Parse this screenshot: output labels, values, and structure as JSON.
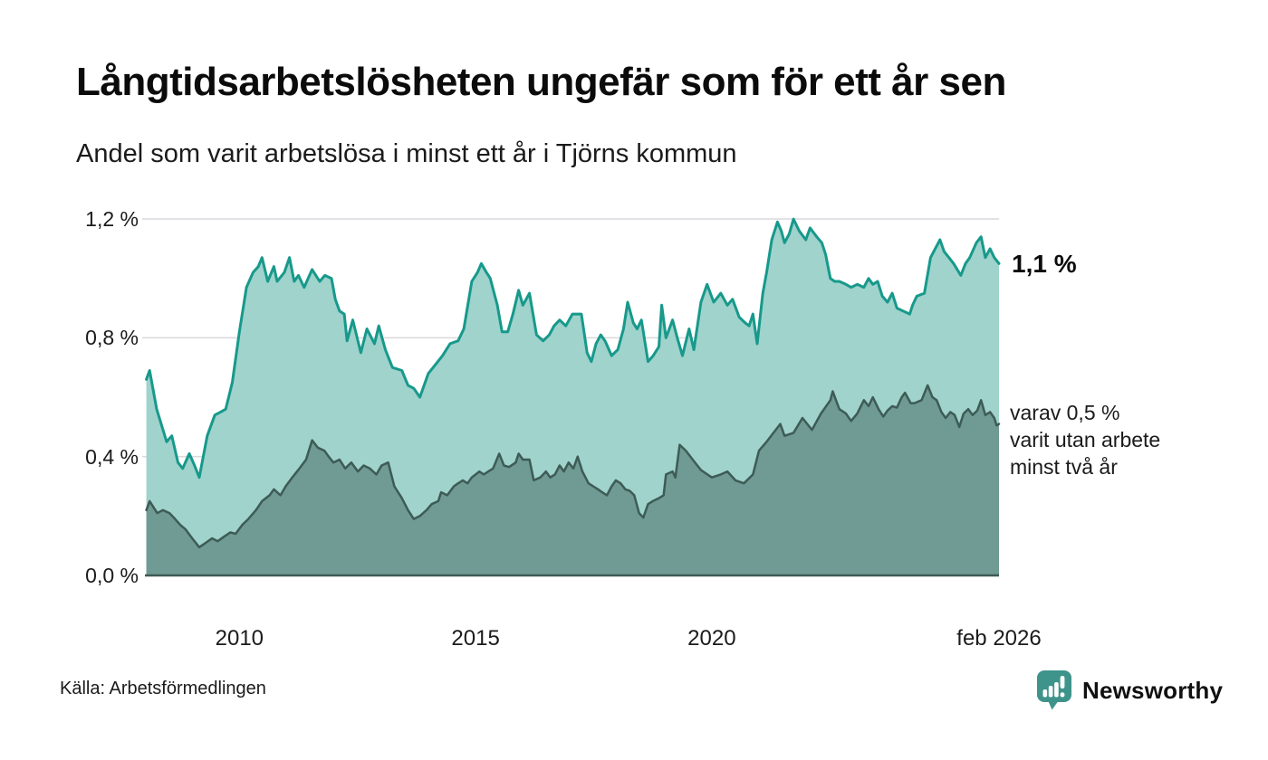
{
  "footer": {
    "source": "Källa: Arbetsförmedlingen",
    "brand": "Newsworthy"
  },
  "annotations": {
    "latest_value": "1,1 %",
    "secondary_label": "varav 0,5 %\nvarit utan arbete\nminst två år"
  },
  "colors": {
    "grid": "#d9d9dd",
    "baseline": "#3e5b55",
    "brand_teal": "#3e948b",
    "text_dark": "#0b0b0b"
  },
  "chart_data": {
    "type": "area",
    "title": "Långtidsarbetslösheten ungefär som för ett år sen",
    "subtitle": "Andel som varit arbetslösa i minst ett år i Tjörns kommun",
    "grid": true,
    "legend_position": "right-annotations",
    "x_axis": {
      "range": [
        2008.0,
        2026.08
      ],
      "ticks": [
        {
          "value": 2010,
          "label": "2010"
        },
        {
          "value": 2015,
          "label": "2015"
        },
        {
          "value": 2020,
          "label": "2020"
        },
        {
          "value": 2026.08,
          "label": "feb 2026"
        }
      ]
    },
    "y_axis": {
      "unit": "%",
      "range": [
        0,
        1.2428
      ],
      "ticks": [
        {
          "value": 0.0,
          "label": "0,0 %"
        },
        {
          "value": 0.4,
          "label": "0,4 %"
        },
        {
          "value": 0.8,
          "label": "0,8 %"
        },
        {
          "value": 1.2,
          "label": "1,2 %"
        }
      ]
    },
    "series": [
      {
        "name": "Andel som varit arbetslösa i minst ett år",
        "latest_label": "1,1 %",
        "color": "#17998b",
        "fill": "#9fd3cc",
        "width": 3,
        "x": [
          2008.03,
          2008.1,
          2008.25,
          2008.46,
          2008.57,
          2008.7,
          2008.8,
          2008.94,
          2009.05,
          2009.15,
          2009.32,
          2009.48,
          2009.6,
          2009.71,
          2009.85,
          2010.0,
          2010.15,
          2010.29,
          2010.4,
          2010.48,
          2010.6,
          2010.73,
          2010.8,
          2010.95,
          2011.06,
          2011.16,
          2011.25,
          2011.37,
          2011.54,
          2011.7,
          2011.81,
          2011.95,
          2012.03,
          2012.12,
          2012.22,
          2012.28,
          2012.4,
          2012.57,
          2012.7,
          2012.86,
          2012.95,
          2013.09,
          2013.24,
          2013.44,
          2013.57,
          2013.69,
          2013.82,
          2014.0,
          2014.15,
          2014.3,
          2014.46,
          2014.63,
          2014.75,
          2014.92,
          2015.04,
          2015.12,
          2015.23,
          2015.31,
          2015.46,
          2015.56,
          2015.68,
          2015.79,
          2015.91,
          2016.0,
          2016.14,
          2016.29,
          2016.43,
          2016.56,
          2016.66,
          2016.78,
          2016.91,
          2017.05,
          2017.24,
          2017.36,
          2017.45,
          2017.55,
          2017.65,
          2017.74,
          2017.88,
          2018.01,
          2018.13,
          2018.22,
          2018.34,
          2018.42,
          2018.51,
          2018.65,
          2018.76,
          2018.88,
          2018.94,
          2019.03,
          2019.17,
          2019.27,
          2019.38,
          2019.52,
          2019.62,
          2019.77,
          2019.9,
          2020.04,
          2020.19,
          2020.33,
          2020.44,
          2020.58,
          2020.71,
          2020.79,
          2020.87,
          2020.96,
          2021.08,
          2021.16,
          2021.27,
          2021.39,
          2021.47,
          2021.54,
          2021.64,
          2021.73,
          2021.85,
          2021.99,
          2022.08,
          2022.22,
          2022.33,
          2022.41,
          2022.51,
          2022.6,
          2022.7,
          2022.84,
          2022.95,
          2023.08,
          2023.22,
          2023.32,
          2023.41,
          2023.51,
          2023.61,
          2023.72,
          2023.82,
          2023.92,
          2024.05,
          2024.19,
          2024.25,
          2024.34,
          2024.5,
          2024.63,
          2024.83,
          2024.92,
          2025.02,
          2025.12,
          2025.27,
          2025.37,
          2025.46,
          2025.6,
          2025.7,
          2025.79,
          2025.89,
          2025.98,
          2026.08
        ],
        "y": [
          0.66,
          0.69,
          0.56,
          0.45,
          0.47,
          0.38,
          0.36,
          0.41,
          0.37,
          0.33,
          0.47,
          0.54,
          0.55,
          0.56,
          0.65,
          0.82,
          0.97,
          1.02,
          1.04,
          1.07,
          0.99,
          1.04,
          0.99,
          1.02,
          1.07,
          0.99,
          1.01,
          0.97,
          1.03,
          0.99,
          1.01,
          1.0,
          0.93,
          0.89,
          0.88,
          0.79,
          0.86,
          0.75,
          0.83,
          0.78,
          0.84,
          0.76,
          0.7,
          0.69,
          0.64,
          0.63,
          0.6,
          0.68,
          0.71,
          0.74,
          0.78,
          0.79,
          0.83,
          0.99,
          1.02,
          1.05,
          1.02,
          1.0,
          0.91,
          0.82,
          0.82,
          0.88,
          0.96,
          0.91,
          0.95,
          0.81,
          0.79,
          0.81,
          0.84,
          0.86,
          0.84,
          0.88,
          0.88,
          0.75,
          0.72,
          0.78,
          0.81,
          0.79,
          0.74,
          0.76,
          0.83,
          0.92,
          0.85,
          0.83,
          0.86,
          0.72,
          0.74,
          0.77,
          0.91,
          0.8,
          0.86,
          0.8,
          0.74,
          0.83,
          0.76,
          0.92,
          0.98,
          0.92,
          0.95,
          0.91,
          0.93,
          0.87,
          0.85,
          0.84,
          0.88,
          0.78,
          0.95,
          1.02,
          1.13,
          1.19,
          1.16,
          1.12,
          1.15,
          1.2,
          1.16,
          1.13,
          1.17,
          1.14,
          1.12,
          1.08,
          1.0,
          0.99,
          0.99,
          0.98,
          0.97,
          0.98,
          0.97,
          1.0,
          0.98,
          0.99,
          0.94,
          0.92,
          0.95,
          0.9,
          0.89,
          0.88,
          0.91,
          0.94,
          0.95,
          1.07,
          1.13,
          1.09,
          1.07,
          1.05,
          1.01,
          1.05,
          1.07,
          1.12,
          1.14,
          1.07,
          1.1,
          1.07,
          1.05
        ]
      },
      {
        "name": "varav utan arbete minst två år",
        "latest_label": "varav 0,5 % varit utan arbete minst två år",
        "color": "#3e5b55",
        "fill": "#6f9b94",
        "width": 2.5,
        "x": [
          2008.03,
          2008.1,
          2008.26,
          2008.38,
          2008.52,
          2008.61,
          2008.75,
          2008.86,
          2009.0,
          2009.15,
          2009.29,
          2009.42,
          2009.54,
          2009.67,
          2009.81,
          2009.92,
          2010.06,
          2010.19,
          2010.35,
          2010.48,
          2010.64,
          2010.73,
          2010.87,
          2010.98,
          2011.12,
          2011.27,
          2011.41,
          2011.54,
          2011.66,
          2011.8,
          2011.89,
          2011.99,
          2012.12,
          2012.24,
          2012.37,
          2012.51,
          2012.63,
          2012.76,
          2012.9,
          2013.01,
          2013.15,
          2013.28,
          2013.44,
          2013.57,
          2013.69,
          2013.82,
          2013.96,
          2014.07,
          2014.21,
          2014.27,
          2014.4,
          2014.54,
          2014.63,
          2014.73,
          2014.83,
          2014.92,
          2015.08,
          2015.17,
          2015.27,
          2015.37,
          2015.5,
          2015.6,
          2015.71,
          2015.85,
          2015.91,
          2016.0,
          2016.14,
          2016.23,
          2016.37,
          2016.49,
          2016.58,
          2016.68,
          2016.78,
          2016.87,
          2016.97,
          2017.07,
          2017.16,
          2017.26,
          2017.39,
          2017.49,
          2017.59,
          2017.68,
          2017.78,
          2017.88,
          2017.97,
          2018.07,
          2018.17,
          2018.26,
          2018.36,
          2018.46,
          2018.55,
          2018.65,
          2018.75,
          2018.88,
          2018.98,
          2019.03,
          2019.17,
          2019.23,
          2019.32,
          2019.45,
          2019.62,
          2019.77,
          2020.0,
          2020.19,
          2020.33,
          2020.5,
          2020.68,
          2020.87,
          2021.0,
          2021.16,
          2021.45,
          2021.54,
          2021.73,
          2021.92,
          2022.12,
          2022.31,
          2022.51,
          2022.56,
          2022.7,
          2022.84,
          2022.95,
          2023.08,
          2023.22,
          2023.32,
          2023.41,
          2023.53,
          2023.63,
          2023.72,
          2023.82,
          2023.92,
          2024.02,
          2024.09,
          2024.21,
          2024.29,
          2024.44,
          2024.57,
          2024.67,
          2024.76,
          2024.86,
          2024.95,
          2025.05,
          2025.14,
          2025.24,
          2025.33,
          2025.43,
          2025.52,
          2025.62,
          2025.7,
          2025.79,
          2025.89,
          2025.98,
          2026.03,
          2026.08
        ],
        "y": [
          0.22,
          0.25,
          0.21,
          0.22,
          0.21,
          0.195,
          0.17,
          0.155,
          0.125,
          0.095,
          0.11,
          0.125,
          0.115,
          0.13,
          0.145,
          0.14,
          0.17,
          0.19,
          0.22,
          0.25,
          0.27,
          0.29,
          0.27,
          0.3,
          0.33,
          0.36,
          0.39,
          0.455,
          0.43,
          0.42,
          0.4,
          0.38,
          0.39,
          0.36,
          0.38,
          0.35,
          0.37,
          0.36,
          0.34,
          0.37,
          0.38,
          0.3,
          0.26,
          0.22,
          0.19,
          0.2,
          0.22,
          0.24,
          0.25,
          0.28,
          0.27,
          0.3,
          0.31,
          0.32,
          0.31,
          0.33,
          0.35,
          0.34,
          0.35,
          0.36,
          0.41,
          0.37,
          0.365,
          0.38,
          0.41,
          0.39,
          0.39,
          0.32,
          0.33,
          0.35,
          0.33,
          0.34,
          0.37,
          0.35,
          0.38,
          0.36,
          0.4,
          0.35,
          0.31,
          0.3,
          0.29,
          0.28,
          0.27,
          0.3,
          0.32,
          0.31,
          0.29,
          0.285,
          0.27,
          0.21,
          0.195,
          0.24,
          0.25,
          0.26,
          0.27,
          0.34,
          0.35,
          0.33,
          0.44,
          0.42,
          0.385,
          0.355,
          0.33,
          0.34,
          0.35,
          0.32,
          0.31,
          0.34,
          0.42,
          0.45,
          0.51,
          0.47,
          0.48,
          0.53,
          0.49,
          0.545,
          0.59,
          0.62,
          0.56,
          0.545,
          0.52,
          0.545,
          0.59,
          0.57,
          0.6,
          0.56,
          0.535,
          0.555,
          0.57,
          0.565,
          0.6,
          0.615,
          0.58,
          0.58,
          0.59,
          0.64,
          0.6,
          0.59,
          0.55,
          0.53,
          0.55,
          0.54,
          0.5,
          0.545,
          0.56,
          0.54,
          0.555,
          0.59,
          0.54,
          0.55,
          0.53,
          0.505,
          0.51
        ]
      }
    ]
  }
}
